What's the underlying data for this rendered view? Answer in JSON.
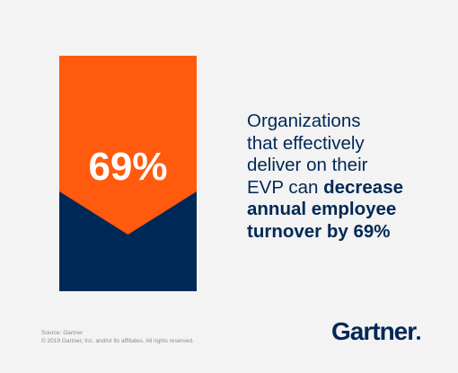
{
  "stat": {
    "value": "69%"
  },
  "message": {
    "line1": "Organizations",
    "line2": "that effectively",
    "line3": "deliver on their",
    "line4_regular": "EVP can ",
    "line4_bold": "decrease",
    "line5_bold": "annual employee",
    "line6_bold": "turnover by 69%"
  },
  "footer": {
    "source": "Source: Gartner",
    "copyright": "© 2019 Gartner, Inc. and/or its affiliates. All rights reserved."
  },
  "brand": {
    "logo_text": "Gartner"
  },
  "colors": {
    "background": "#f3f3f3",
    "orange": "#ff5a0d",
    "navy": "#002856",
    "white": "#ffffff"
  }
}
